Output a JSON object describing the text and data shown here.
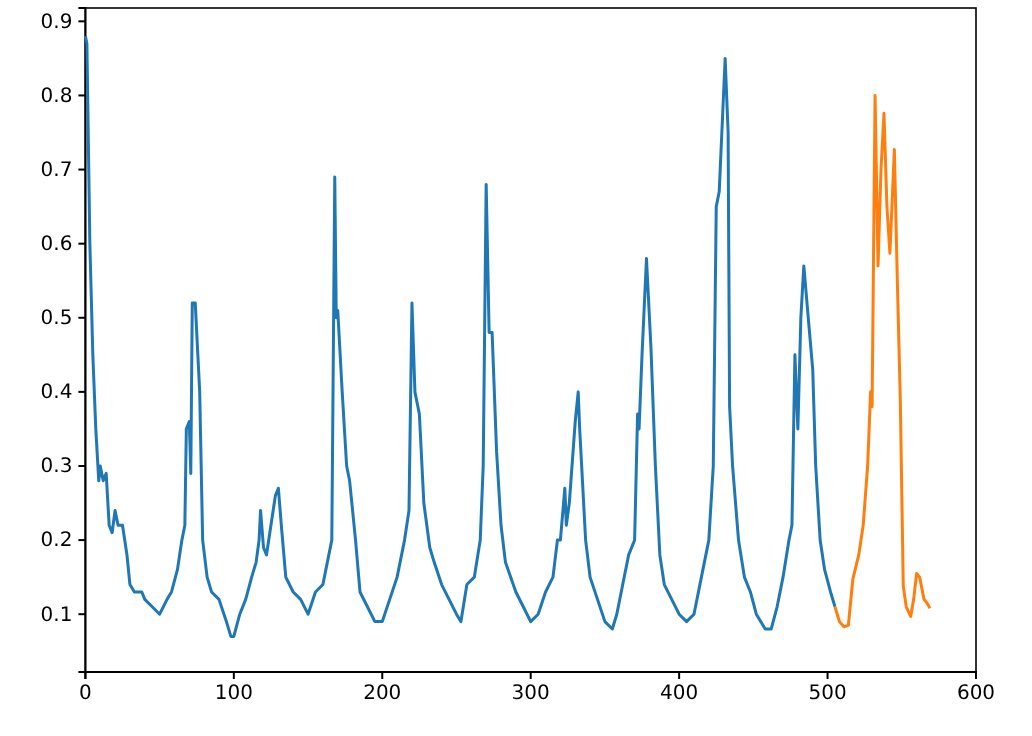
{
  "chart_data": {
    "type": "line",
    "xlim": [
      0,
      600
    ],
    "xticks": [
      0,
      100,
      200,
      300,
      400,
      500,
      600
    ],
    "ylim": [
      0.022,
      0.918
    ],
    "yticks": [
      0.1,
      0.2,
      0.3,
      0.4,
      0.5,
      0.6,
      0.7,
      0.8,
      0.9
    ],
    "grid": false,
    "series": [
      {
        "color": "#1f77b4",
        "x": [
          0,
          1,
          3,
          5,
          7,
          9,
          10,
          12,
          14,
          16,
          18,
          20,
          22,
          25,
          28,
          30,
          33,
          38,
          40,
          45,
          50,
          55,
          58,
          62,
          65,
          67,
          68,
          70,
          71,
          72,
          74,
          77,
          79,
          82,
          85,
          90,
          95,
          98,
          100,
          104,
          108,
          112,
          115,
          117,
          118,
          120,
          122,
          125,
          128,
          130,
          132,
          135,
          140,
          145,
          150,
          155,
          160,
          164,
          166,
          168,
          169,
          170,
          173,
          176,
          178,
          182,
          185,
          190,
          195,
          200,
          205,
          210,
          215,
          218,
          220,
          221,
          222,
          225,
          228,
          232,
          235,
          240,
          245,
          250,
          253,
          257,
          262,
          266,
          268,
          270,
          272,
          274,
          277,
          280,
          283,
          290,
          295,
          300,
          305,
          310,
          315,
          318,
          320,
          323,
          324,
          326,
          330,
          332,
          333,
          337,
          340,
          345,
          350,
          355,
          358,
          362,
          366,
          370,
          372,
          373,
          375,
          378,
          381,
          384,
          387,
          390,
          395,
          400,
          405,
          410,
          415,
          420,
          423,
          425,
          427,
          431,
          433,
          434,
          436,
          440,
          444,
          448,
          452,
          458,
          462,
          466,
          470,
          474,
          476,
          478,
          480,
          482,
          484,
          487,
          490,
          492,
          495,
          498,
          502,
          505
        ],
        "values": [
          0.88,
          0.87,
          0.6,
          0.45,
          0.35,
          0.28,
          0.3,
          0.28,
          0.29,
          0.22,
          0.21,
          0.24,
          0.22,
          0.22,
          0.18,
          0.14,
          0.13,
          0.13,
          0.12,
          0.11,
          0.1,
          0.12,
          0.13,
          0.16,
          0.2,
          0.22,
          0.35,
          0.36,
          0.29,
          0.52,
          0.52,
          0.4,
          0.2,
          0.15,
          0.13,
          0.12,
          0.09,
          0.07,
          0.07,
          0.1,
          0.12,
          0.15,
          0.17,
          0.2,
          0.24,
          0.19,
          0.18,
          0.22,
          0.26,
          0.27,
          0.22,
          0.15,
          0.13,
          0.12,
          0.1,
          0.13,
          0.14,
          0.18,
          0.2,
          0.69,
          0.5,
          0.51,
          0.4,
          0.3,
          0.28,
          0.2,
          0.13,
          0.11,
          0.09,
          0.09,
          0.12,
          0.15,
          0.2,
          0.24,
          0.52,
          0.46,
          0.4,
          0.37,
          0.25,
          0.19,
          0.17,
          0.14,
          0.12,
          0.1,
          0.09,
          0.14,
          0.15,
          0.2,
          0.3,
          0.68,
          0.48,
          0.48,
          0.32,
          0.22,
          0.17,
          0.13,
          0.11,
          0.09,
          0.1,
          0.13,
          0.15,
          0.2,
          0.2,
          0.27,
          0.22,
          0.25,
          0.36,
          0.4,
          0.35,
          0.2,
          0.15,
          0.12,
          0.09,
          0.08,
          0.1,
          0.14,
          0.18,
          0.2,
          0.37,
          0.35,
          0.45,
          0.58,
          0.46,
          0.3,
          0.18,
          0.14,
          0.12,
          0.1,
          0.09,
          0.1,
          0.15,
          0.2,
          0.3,
          0.65,
          0.67,
          0.85,
          0.75,
          0.38,
          0.3,
          0.2,
          0.15,
          0.13,
          0.1,
          0.08,
          0.08,
          0.11,
          0.15,
          0.2,
          0.22,
          0.45,
          0.35,
          0.5,
          0.57,
          0.5,
          0.43,
          0.3,
          0.2,
          0.16,
          0.13,
          0.11
        ]
      },
      {
        "color": "#ff7f0e",
        "x": [
          505,
          508,
          511,
          514,
          517,
          521,
          524,
          527,
          529,
          530,
          532,
          534,
          536,
          538,
          540,
          542,
          545,
          547,
          549,
          551,
          553,
          556,
          558,
          560,
          562,
          565,
          567,
          569
        ],
        "values": [
          0.11,
          0.09,
          0.083,
          0.085,
          0.147,
          0.18,
          0.22,
          0.3,
          0.4,
          0.38,
          0.8,
          0.57,
          0.7,
          0.776,
          0.65,
          0.587,
          0.727,
          0.55,
          0.39,
          0.138,
          0.11,
          0.097,
          0.12,
          0.155,
          0.15,
          0.12,
          0.115,
          0.108
        ]
      }
    ]
  }
}
